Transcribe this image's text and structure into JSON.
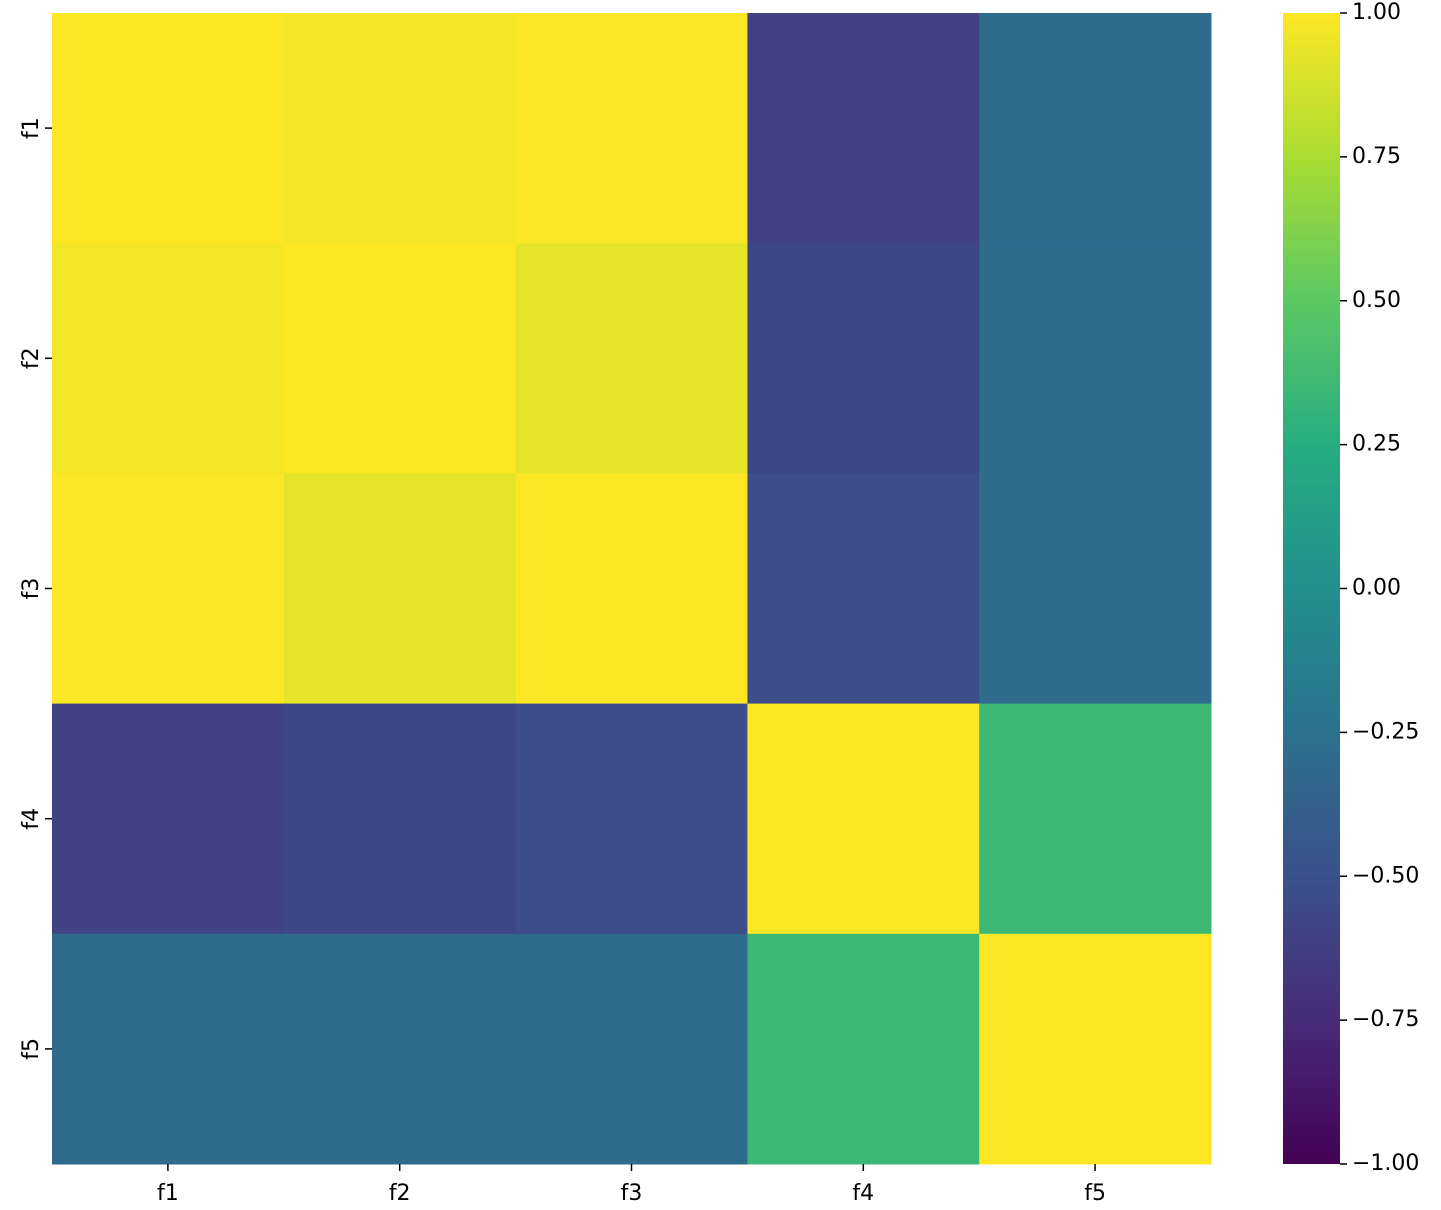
{
  "chart_data": {
    "type": "heatmap",
    "x_categories": [
      "f1",
      "f2",
      "f3",
      "f4",
      "f5"
    ],
    "y_categories": [
      "f1",
      "f2",
      "f3",
      "f4",
      "f5"
    ],
    "values": [
      [
        1.0,
        0.97,
        0.99,
        -0.6,
        -0.3
      ],
      [
        0.97,
        1.0,
        0.93,
        -0.57,
        -0.3
      ],
      [
        0.99,
        0.93,
        1.0,
        -0.53,
        -0.3
      ],
      [
        -0.6,
        -0.57,
        -0.53,
        1.0,
        0.35
      ],
      [
        -0.3,
        -0.3,
        -0.3,
        0.35,
        1.0
      ]
    ],
    "colormap": "viridis",
    "clim": [
      -1,
      1
    ],
    "cticks": [
      {
        "value": -1,
        "label": "−1.00"
      },
      {
        "value": -0.75,
        "label": "−0.75"
      },
      {
        "value": -0.5,
        "label": "−0.50"
      },
      {
        "value": -0.25,
        "label": "−0.25"
      },
      {
        "value": 0,
        "label": "0.00"
      },
      {
        "value": 0.25,
        "label": "0.25"
      },
      {
        "value": 0.5,
        "label": "0.50"
      },
      {
        "value": 0.75,
        "label": "0.75"
      },
      {
        "value": 1,
        "label": "1.00"
      }
    ]
  }
}
